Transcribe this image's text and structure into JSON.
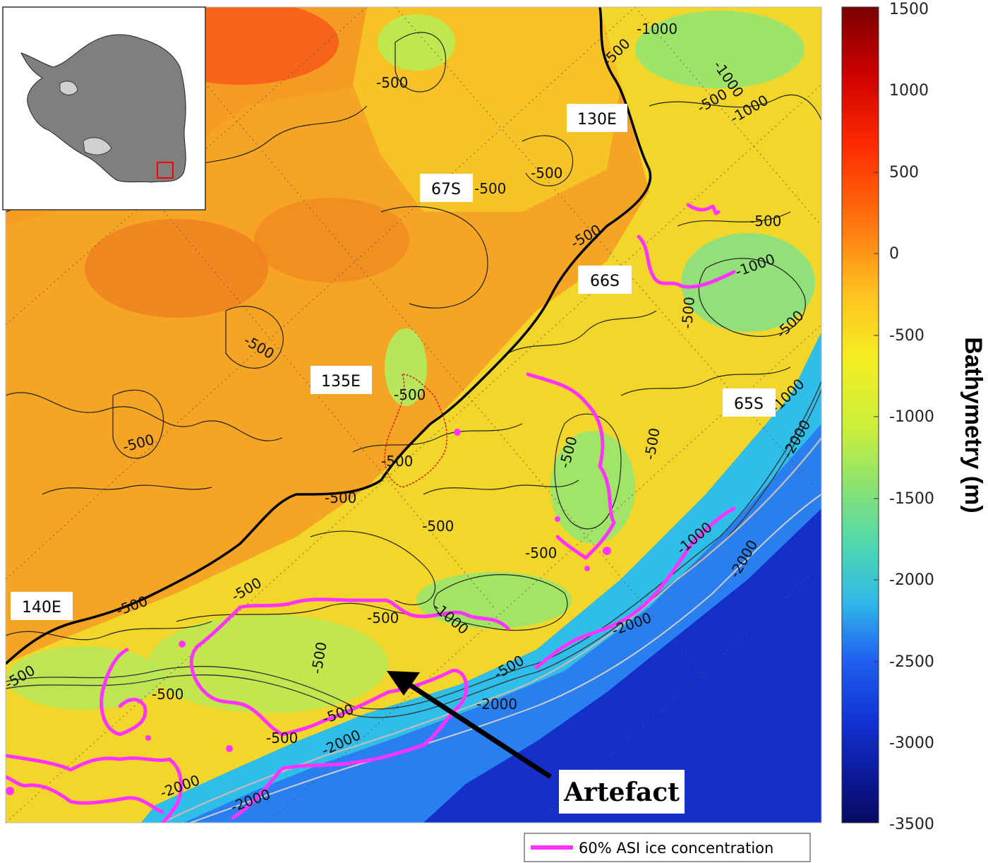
{
  "map": {
    "grid_labels": [
      {
        "id": "130E",
        "text": "130E"
      },
      {
        "id": "135E",
        "text": "135E"
      },
      {
        "id": "140E",
        "text": "140E"
      },
      {
        "id": "67S",
        "text": "67S"
      },
      {
        "id": "66S",
        "text": "66S"
      },
      {
        "id": "65S",
        "text": "65S"
      }
    ],
    "contour_labels": [
      "-1000",
      "-1000",
      "-500",
      "-500",
      "-500",
      "-500",
      "-1000",
      "-500",
      "-500",
      "-500",
      "-500",
      "-500",
      "-500",
      "-1000",
      "-500",
      "-500",
      "-500",
      "-500",
      "-500",
      "-1000",
      "-2000",
      "-2000",
      "-1000",
      "-500",
      "-500",
      "-500",
      "-2000",
      "-500",
      "-500",
      "-1000",
      "-500",
      "-2000",
      "-2000",
      "-500",
      "-2000",
      "-500",
      "-500",
      "-2000",
      "-500",
      "-500",
      "-500"
    ],
    "annotation": "Artefact",
    "colors": {
      "ice_concentration_line": "#ff33ff",
      "shelf_break_line": "#000000",
      "deep_contour": "#bbbbbb",
      "red_outline": "#cc2222"
    }
  },
  "colorbar": {
    "label": "Bathymetry (m)",
    "ticks": [
      "1500",
      "1000",
      "500",
      "0",
      "-500",
      "-1000",
      "-1500",
      "-2000",
      "-2500",
      "-3000",
      "-3500"
    ],
    "colors": [
      "#7a0000",
      "#cc0000",
      "#ff2a00",
      "#ff7a10",
      "#ffc020",
      "#f4ee20",
      "#c8ef3c",
      "#7fe07a",
      "#4fd8b0",
      "#30b8e8",
      "#2060f0",
      "#1030d0",
      "#0c1a9a",
      "#080a60"
    ]
  },
  "inset": {
    "description_icon": "antarctica-locator-icon",
    "colors": {
      "land": "#7f7f7f",
      "ice_shelf": "#d0d0d0",
      "locator": "#ff0000"
    }
  },
  "legend": {
    "label": "60% ASI ice concentration",
    "color": "#ff33ff"
  }
}
